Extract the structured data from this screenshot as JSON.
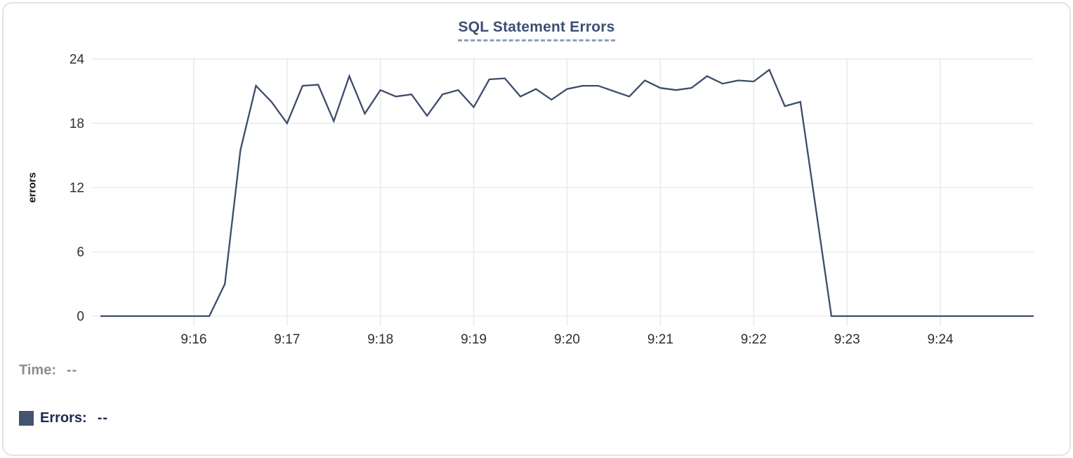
{
  "chart": {
    "title": "SQL Statement Errors",
    "y_axis_label": "errors"
  },
  "readout": {
    "time_label": "Time:",
    "time_value": "--",
    "errors_label": "Errors:",
    "errors_value": "--"
  },
  "colors": {
    "line": "#3d4c6a",
    "title": "#3e4f73",
    "title_underline": "#8e9dbd",
    "grid": "#ebebeb",
    "axis_text": "#2e2e2e",
    "y_axis_title_text": "#111111",
    "time_text": "#8d8d94",
    "errors_text": "#1c2a52",
    "swatch": "#44536e",
    "card_border": "#e3e3e7"
  },
  "chart_data": {
    "type": "line",
    "title": "SQL Statement Errors",
    "xlabel": "",
    "ylabel": "errors",
    "ylim": [
      0,
      24
    ],
    "y_ticks": [
      0,
      6,
      12,
      18,
      24
    ],
    "x_tick_labels": [
      "9:16",
      "9:17",
      "9:18",
      "9:19",
      "9:20",
      "9:21",
      "9:22",
      "9:23",
      "9:24"
    ],
    "x_tick_offsets_seconds": [
      60,
      120,
      180,
      240,
      300,
      360,
      420,
      480,
      540
    ],
    "x_domain": [
      "9:15:00",
      "9:25:00"
    ],
    "x_domain_seconds": 600,
    "sample_interval_seconds": 10,
    "grid": true,
    "legend_position": "bottom-left",
    "series": [
      {
        "name": "Errors",
        "color": "#3d4c6a",
        "start_time": "9:15:00",
        "values": [
          0,
          0,
          0,
          0,
          0,
          0,
          0,
          0,
          3,
          15.5,
          21.5,
          20,
          18,
          21.5,
          21.6,
          18.2,
          22.4,
          18.9,
          21.1,
          20.5,
          20.7,
          18.7,
          20.7,
          21.1,
          19.5,
          22.1,
          22.2,
          20.5,
          21.2,
          20.2,
          21.2,
          21.5,
          21.5,
          21,
          20.5,
          22,
          21.3,
          21.1,
          21.3,
          22.4,
          21.7,
          22,
          21.9,
          23,
          19.6,
          20,
          10,
          0,
          0,
          0,
          0,
          0,
          0,
          0,
          0,
          0,
          0,
          0,
          0,
          0,
          0
        ]
      }
    ]
  }
}
